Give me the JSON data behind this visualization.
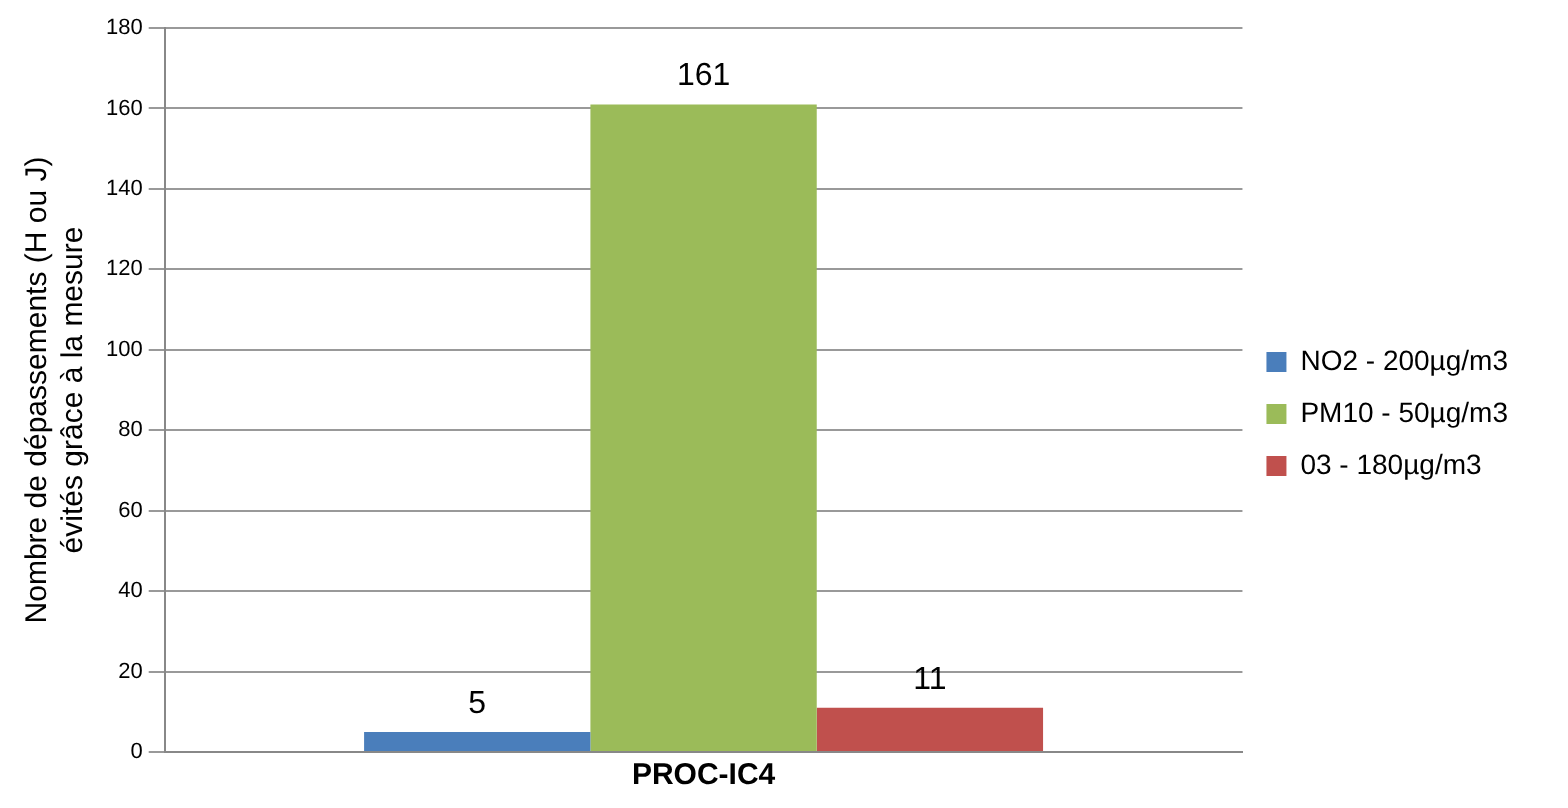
{
  "chart_data": {
    "type": "bar",
    "categories": [
      "PROC-IC4"
    ],
    "ylabel": "Nombre de dépassements (H ou J)\névités grâce à la mesure",
    "series": [
      {
        "name": "NO2 - 200µg/m3",
        "color": "#4a7ebb",
        "values": [
          5
        ]
      },
      {
        "name": "PM10 - 50µg/m3",
        "color": "#9bbb59",
        "values": [
          161
        ]
      },
      {
        "name": "03 - 180µg/m3",
        "color": "#c0504d",
        "values": [
          11
        ]
      }
    ],
    "ylim": [
      0,
      180
    ],
    "yticks": [
      0,
      20,
      40,
      60,
      80,
      100,
      120,
      140,
      160,
      180
    ],
    "grid": "y",
    "legend": "right",
    "data_labels": true
  }
}
